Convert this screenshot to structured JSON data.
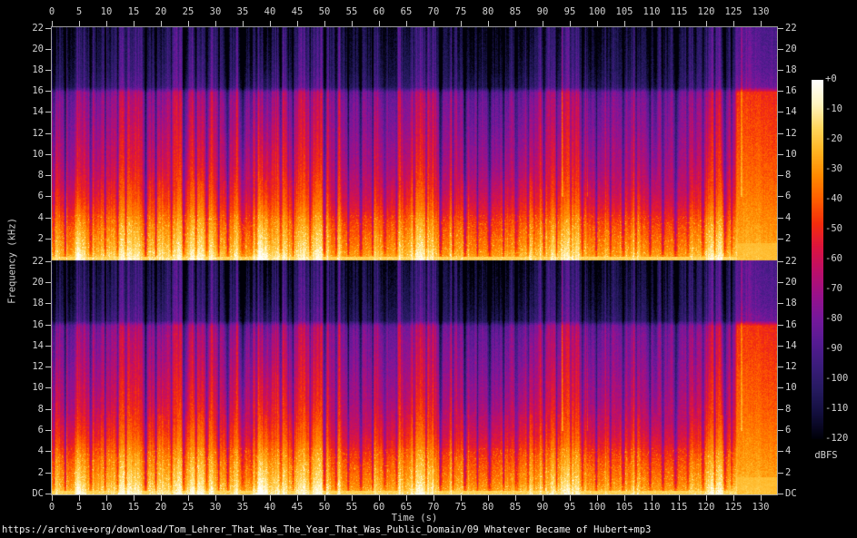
{
  "footer": {
    "url": "https://archive+org/download/Tom_Lehrer_That_Was_The_Year_That_Was_Public_Domain/09 Whatever Became of Hubert+mp3"
  },
  "axes": {
    "x_label": "Time (s)",
    "y_label": "Frequency (kHz)",
    "x_tick_labels": [
      "0",
      "5",
      "10",
      "15",
      "20",
      "25",
      "30",
      "35",
      "40",
      "45",
      "50",
      "55",
      "60",
      "65",
      "70",
      "75",
      "80",
      "85",
      "90",
      "95",
      "100",
      "105",
      "110",
      "115",
      "120",
      "125",
      "130"
    ],
    "y_tick_labels_channel1": [
      "22",
      "20",
      "18",
      "16",
      "14",
      "12",
      "10",
      "8",
      "6",
      "4",
      "2"
    ],
    "y_tick_labels_channel2": [
      "22",
      "20",
      "18",
      "16",
      "14",
      "12",
      "10",
      "8",
      "6",
      "4",
      "2",
      "DC"
    ]
  },
  "colorbar": {
    "label": "dBFS",
    "tick_labels": [
      "+0",
      "-10",
      "-20",
      "-30",
      "-40",
      "-50",
      "-60",
      "-70",
      "-80",
      "-90",
      "-100",
      "-110",
      "-120"
    ]
  },
  "chart_data": {
    "type": "heatmap",
    "subtype": "stereo-audio-spectrogram",
    "channels": [
      "channel-1-top",
      "channel-2-bottom"
    ],
    "xlabel": "Time (s)",
    "ylabel": "Frequency (kHz)",
    "zlabel": "dBFS",
    "x_range_s": [
      0,
      133
    ],
    "x_tick_step_s": 5,
    "x_ticks_s": [
      0,
      5,
      10,
      15,
      20,
      25,
      30,
      35,
      40,
      45,
      50,
      55,
      60,
      65,
      70,
      75,
      80,
      85,
      90,
      95,
      100,
      105,
      110,
      115,
      120,
      125,
      130
    ],
    "y_range_khz": [
      0,
      22.05
    ],
    "y_ticks_khz": [
      22,
      20,
      18,
      16,
      14,
      12,
      10,
      8,
      6,
      4,
      2,
      0
    ],
    "z_range_dbfs": [
      -120,
      0
    ],
    "colorbar_ticks_dbfs": [
      0,
      -10,
      -20,
      -30,
      -40,
      -50,
      -60,
      -70,
      -80,
      -90,
      -100,
      -110,
      -120
    ],
    "mp3_cutoff_khz": 16.1,
    "palette_stops": [
      [
        -120,
        "#000008"
      ],
      [
        -112,
        "#120e3c"
      ],
      [
        -104,
        "#251a5e"
      ],
      [
        -96,
        "#3a1c7a"
      ],
      [
        -88,
        "#551b92"
      ],
      [
        -80,
        "#75189b"
      ],
      [
        -72,
        "#99118b"
      ],
      [
        -64,
        "#bc0f6a"
      ],
      [
        -56,
        "#dc1440"
      ],
      [
        -48,
        "#f42d0c"
      ],
      [
        -40,
        "#ff5e00"
      ],
      [
        -32,
        "#ff8900"
      ],
      [
        -24,
        "#ffb321"
      ],
      [
        -16,
        "#ffd65c"
      ],
      [
        -8,
        "#fff5c0"
      ],
      [
        0,
        "#ffffff"
      ]
    ],
    "band_profile_music_dbfs": [
      [
        0,
        -13
      ],
      [
        0.4,
        -17
      ],
      [
        1.2,
        -23
      ],
      [
        2.2,
        -28
      ],
      [
        3.2,
        -33
      ],
      [
        4.2,
        -39
      ],
      [
        5.5,
        -46
      ],
      [
        7,
        -52
      ],
      [
        9,
        -58
      ],
      [
        11,
        -62
      ],
      [
        13,
        -66
      ],
      [
        15,
        -69
      ],
      [
        15.9,
        -72
      ],
      [
        16.4,
        -92
      ],
      [
        18,
        -97
      ],
      [
        20,
        -100
      ],
      [
        22.05,
        -103
      ]
    ],
    "band_profile_applause_dbfs": [
      [
        0,
        -21
      ],
      [
        0.5,
        -23
      ],
      [
        2,
        -27
      ],
      [
        4,
        -31
      ],
      [
        8,
        -39
      ],
      [
        12,
        -44
      ],
      [
        15.9,
        -48
      ],
      [
        16.4,
        -80
      ],
      [
        18,
        -86
      ],
      [
        22.05,
        -90
      ]
    ],
    "events": {
      "applause": {
        "start_s": 125.3,
        "end_s": 133.0
      },
      "loud_low_bursts_s": [
        4.9,
        38.6
      ],
      "quiet_high_freq_ranges_s": [
        [
          34.6,
          42.0
        ],
        [
          0.0,
          1.0
        ]
      ],
      "speech_gaps_s": [
        0.3,
        2.4,
        7.1,
        9.7,
        12.0,
        13.5,
        17.2,
        19.0,
        21.8,
        24.1,
        26.4,
        28.3,
        30.5,
        32.2,
        34.9,
        36.6,
        37.4,
        41.9,
        44.2,
        47.3,
        49.9,
        52.1,
        54.3,
        56.6,
        58.8,
        61.0,
        63.2,
        66.4,
        68.6,
        71.2,
        73.5,
        75.7,
        78.0,
        80.2,
        82.8,
        85.1,
        87.3,
        90.2,
        92.5,
        95.1,
        97.2,
        99.8,
        102.4,
        104.7,
        107.1,
        109.6,
        112.0,
        114.3,
        116.6,
        119.3,
        121.5,
        123.4,
        124.6
      ],
      "transient_spikes_s": [
        93.6,
        98.2,
        126.4
      ]
    }
  }
}
